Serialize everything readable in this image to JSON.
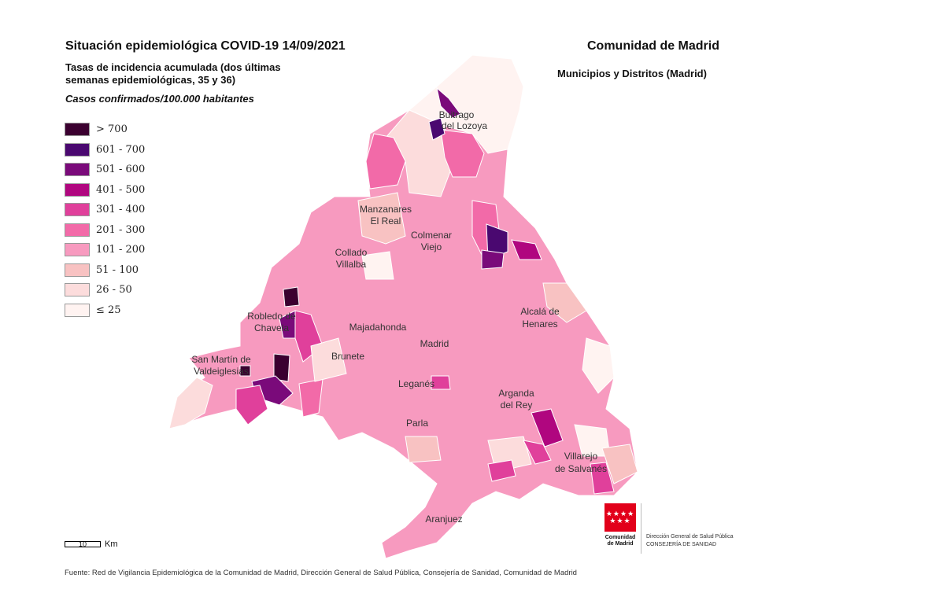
{
  "header": {
    "title": "Situación epidemiológica COVID-19  14/09/2021",
    "subtitle": "Tasas de incidencia acumulada (dos últimas semanas epidemiológicas, 35 y 36)",
    "unit": "Casos confirmados/100.000 habitantes",
    "region": "Comunidad de Madrid",
    "region_sub": "Municipios y Distritos (Madrid)"
  },
  "legend": [
    {
      "label": "> 700",
      "color": "#3b0030"
    },
    {
      "label": "601 - 700",
      "color": "#4a0870"
    },
    {
      "label": "501 - 600",
      "color": "#7a0a7a"
    },
    {
      "label": "401 - 500",
      "color": "#b0067f"
    },
    {
      "label": "301 - 400",
      "color": "#e0409b"
    },
    {
      "label": "201 - 300",
      "color": "#f26aa8"
    },
    {
      "label": "101 - 200",
      "color": "#f79abf"
    },
    {
      "label": "51 - 100",
      "color": "#f8c2c2"
    },
    {
      "label": "26 - 50",
      "color": "#fcdcdc"
    },
    {
      "label": "≤ 25",
      "color": "#fff3f1"
    }
  ],
  "places": [
    {
      "name": "buitrago",
      "lines": [
        "Buitrago",
        "del Lozoya"
      ]
    },
    {
      "name": "manzanares",
      "lines": [
        "Manzanares",
        "El Real"
      ]
    },
    {
      "name": "colmenar",
      "lines": [
        "Colmenar",
        "Viejo"
      ]
    },
    {
      "name": "collado",
      "lines": [
        "Collado",
        "Villalba"
      ]
    },
    {
      "name": "robledo",
      "lines": [
        "Robledo de",
        "Chavela"
      ]
    },
    {
      "name": "majadahonda",
      "lines": [
        "Majadahonda"
      ]
    },
    {
      "name": "alcala",
      "lines": [
        "Alcalá de",
        "Henares"
      ]
    },
    {
      "name": "madrid",
      "lines": [
        "Madrid"
      ]
    },
    {
      "name": "san-martin",
      "lines": [
        "San Martín de",
        "Valdeiglesias"
      ]
    },
    {
      "name": "brunete",
      "lines": [
        "Brunete"
      ]
    },
    {
      "name": "leganes",
      "lines": [
        "Leganés"
      ]
    },
    {
      "name": "arganda",
      "lines": [
        "Arganda",
        "del Rey"
      ]
    },
    {
      "name": "parla",
      "lines": [
        "Parla"
      ]
    },
    {
      "name": "villarejo",
      "lines": [
        "Villarejo",
        "de Salvanés"
      ]
    },
    {
      "name": "aranjuez",
      "lines": [
        "Aranjuez"
      ]
    }
  ],
  "scale": {
    "value": "10",
    "unit": "Km"
  },
  "source": "Fuente: Red de Vigilancia Epidemiológica de la Comunidad de Madrid, Dirección General de Salud Pública, Consejería de Sanidad, Comunidad de Madrid",
  "logo": {
    "stars": "★★★★",
    "name_line1": "Comunidad",
    "name_line2": "de Madrid",
    "dept_line1": "Dirección General de Salud Pública",
    "dept_line2": "CONSEJERÍA DE SANIDAD"
  }
}
